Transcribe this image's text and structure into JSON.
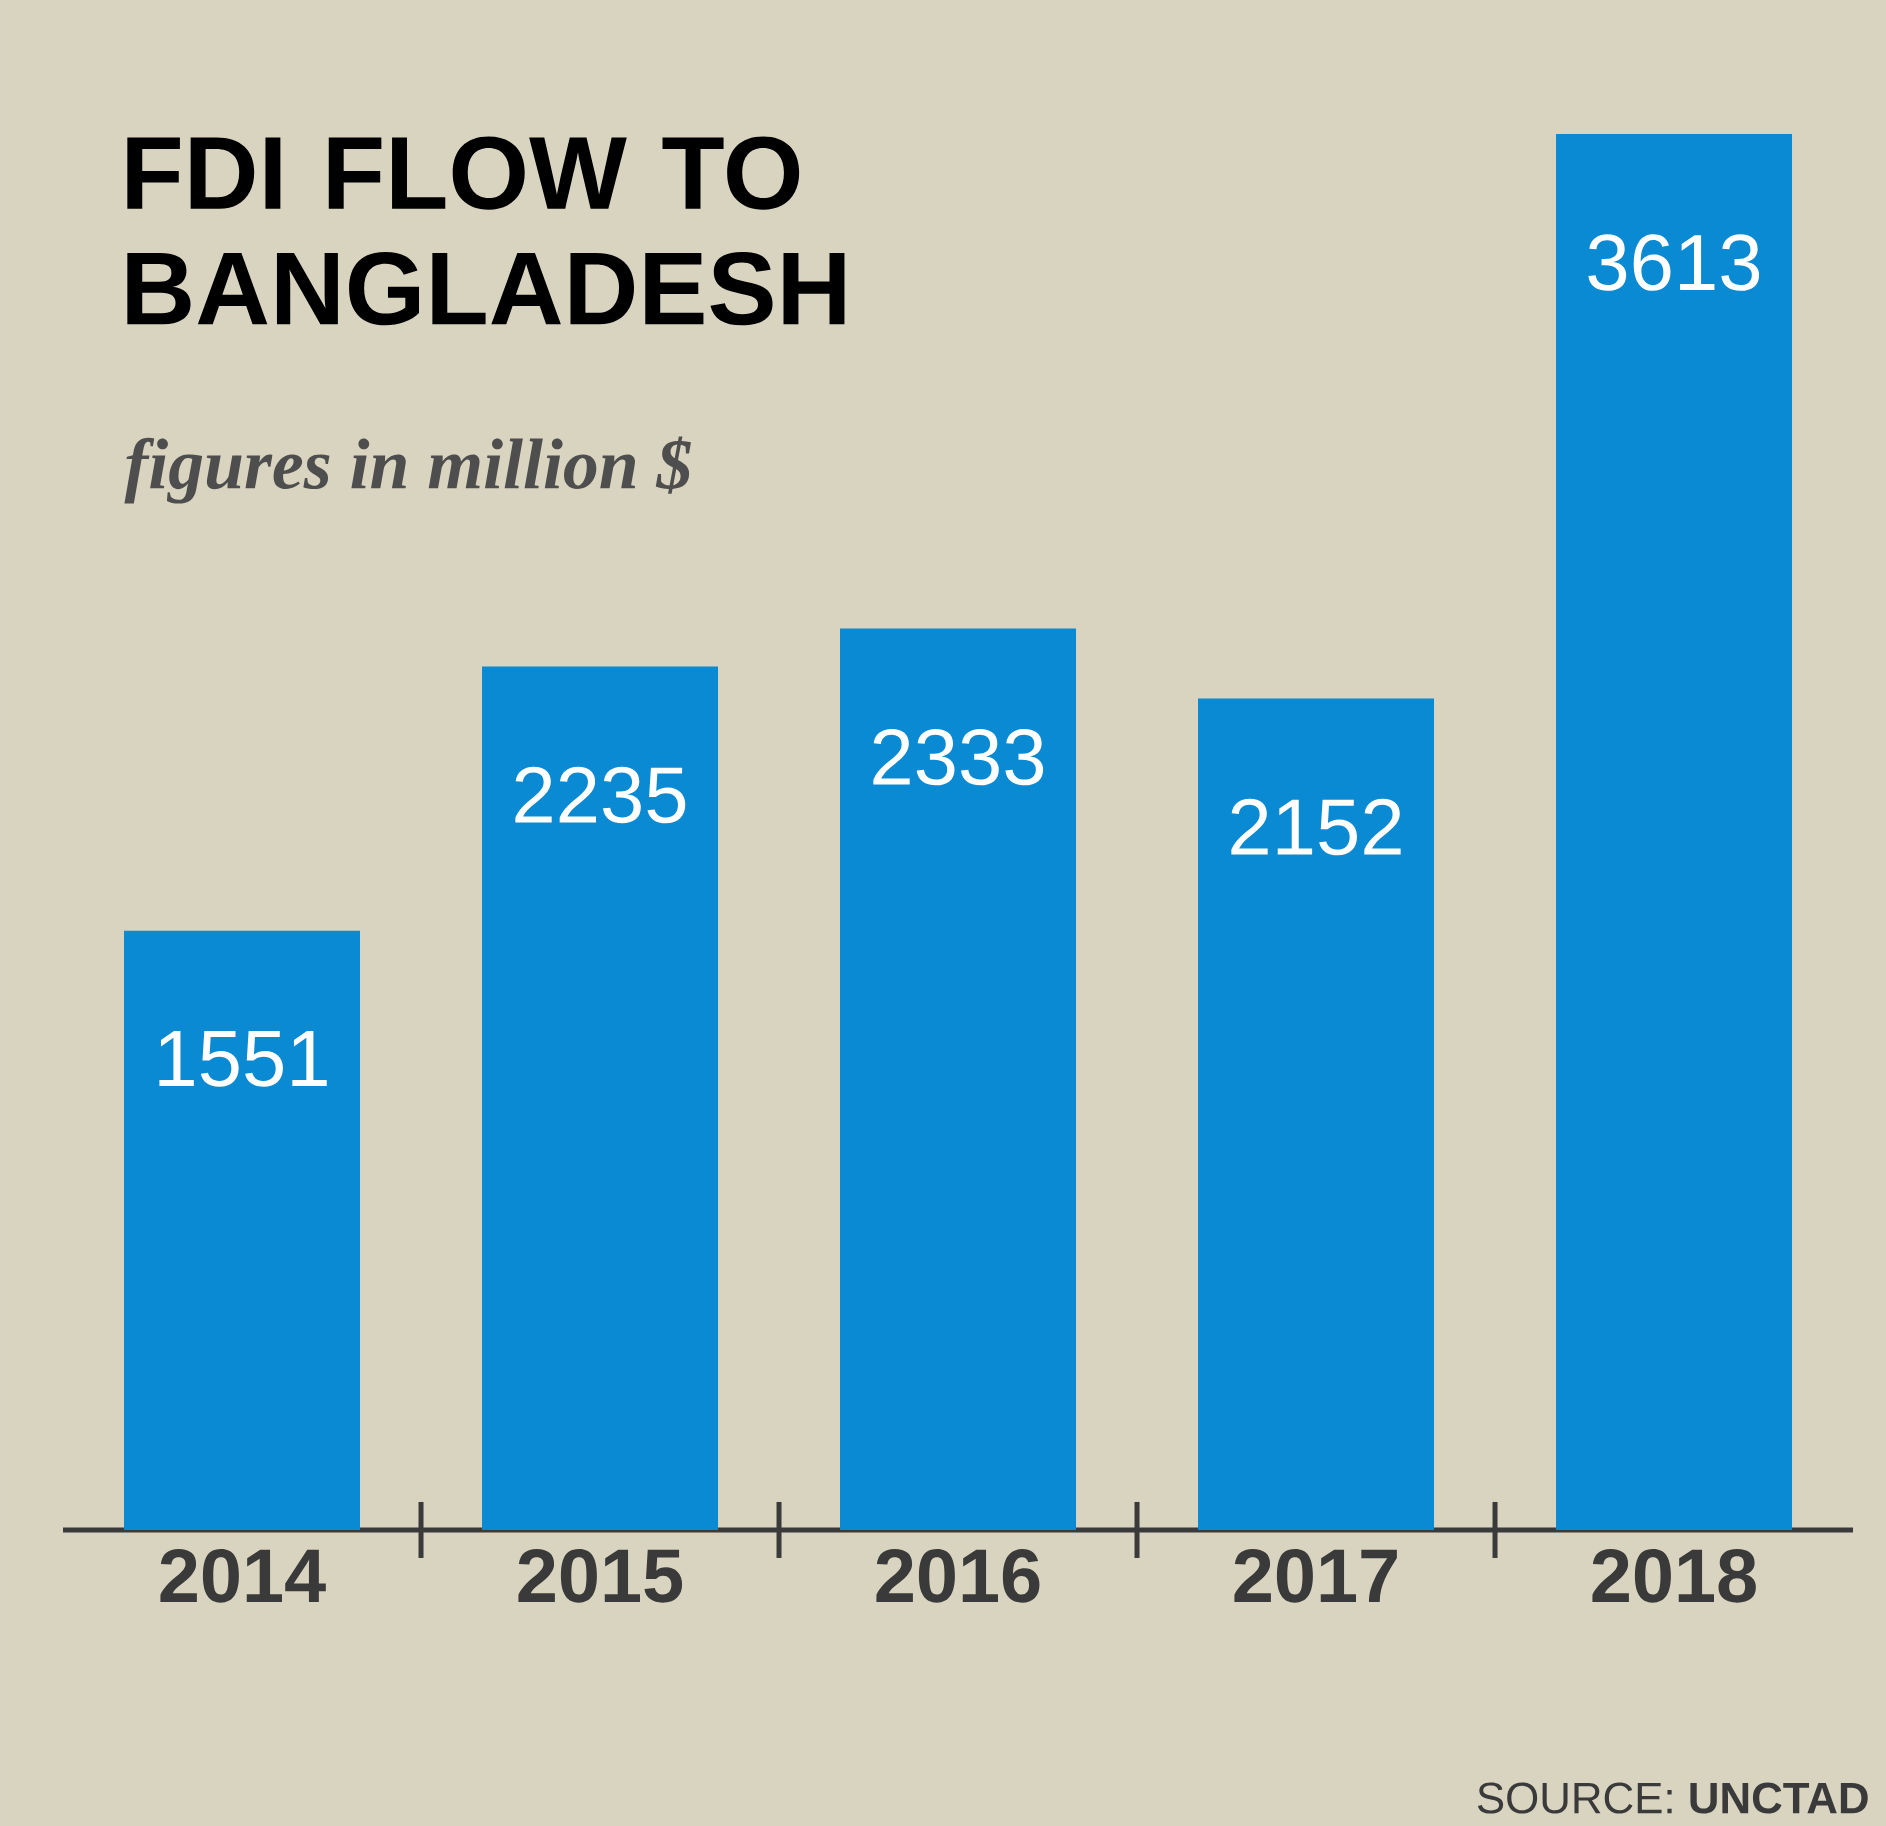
{
  "chart_data": {
    "type": "bar",
    "title": "FDI FLOW TO BANGLADESH",
    "subtitle": "figures in million $",
    "categories": [
      "2014",
      "2015",
      "2016",
      "2017",
      "2018"
    ],
    "values": [
      1551,
      2235,
      2333,
      2152,
      3613
    ],
    "color": "#0a8ad2",
    "data_labels": true,
    "annotations": [
      "SOURCE: **UNCTAD**"
    ]
  }
}
